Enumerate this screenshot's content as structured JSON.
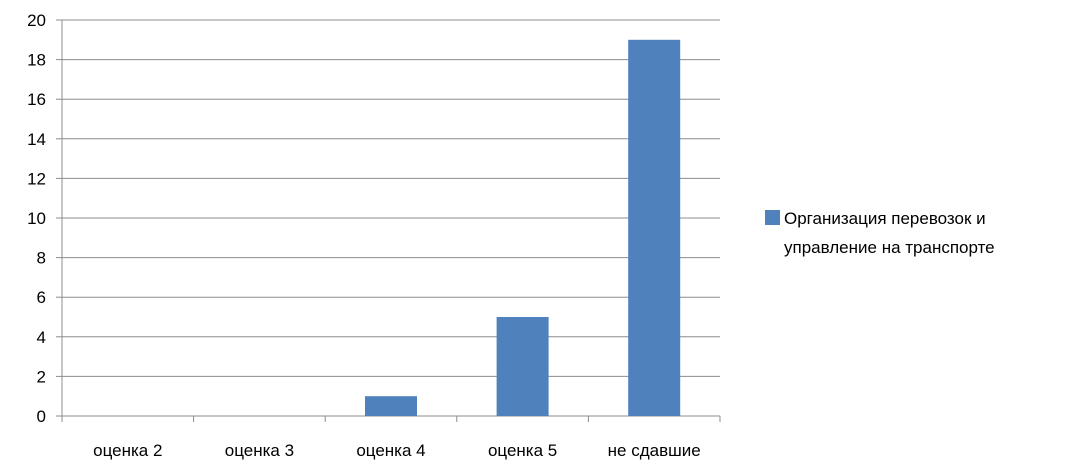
{
  "chart_data": {
    "type": "bar",
    "categories": [
      "оценка 2",
      "оценка 3",
      "оценка 4",
      "оценка 5",
      "не сдавшие"
    ],
    "series": [
      {
        "name": "Организация перевозок и управление на транспорте",
        "values": [
          0,
          0,
          1,
          5,
          19
        ],
        "color": "#4F81BD"
      }
    ],
    "yticks": [
      0,
      2,
      4,
      6,
      8,
      10,
      12,
      14,
      16,
      18,
      20
    ],
    "ylim": [
      0,
      20
    ],
    "grid": true,
    "legend_position": "right",
    "legend_lines": [
      "Организация перевозок и",
      "управление на транспорте"
    ]
  }
}
